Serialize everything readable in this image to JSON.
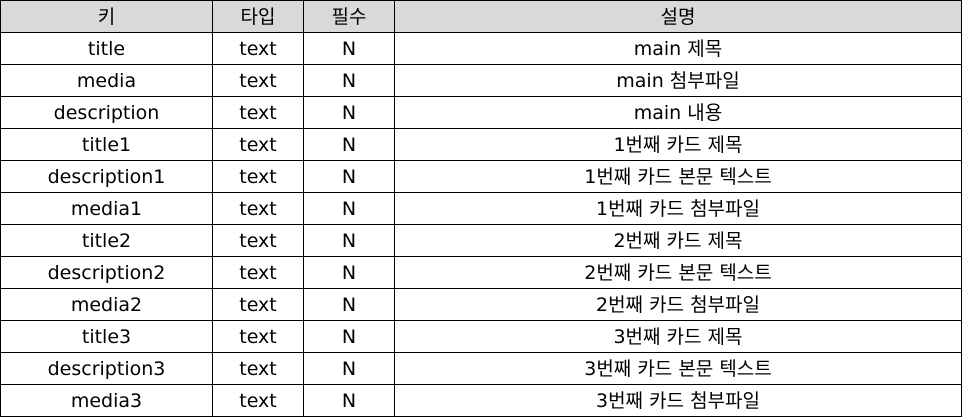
{
  "headers": [
    "키",
    "타입",
    "필수",
    "설명"
  ],
  "rows": [
    [
      "title",
      "text",
      "N",
      "main 제목"
    ],
    [
      "media",
      "text",
      "N",
      "main 첨부파일"
    ],
    [
      "description",
      "text",
      "N",
      "main 내용"
    ],
    [
      "title1",
      "text",
      "N",
      "1번째 카드 제목"
    ],
    [
      "description1",
      "text",
      "N",
      "1번째 카드 본문 텍스트"
    ],
    [
      "media1",
      "text",
      "N",
      "1번째 카드 첨부파일"
    ],
    [
      "title2",
      "text",
      "N",
      "2번째 카드 제목"
    ],
    [
      "description2",
      "text",
      "N",
      "2번째 카드 본문 텍스트"
    ],
    [
      "media2",
      "text",
      "N",
      "2번째 카드 첨부파일"
    ],
    [
      "title3",
      "text",
      "N",
      "3번째 카드 제목"
    ],
    [
      "description3",
      "text",
      "N",
      "3번째 카드 본문 텍스트"
    ],
    [
      "media3",
      "text",
      "N",
      "3번째 카드 첨부파일"
    ]
  ],
  "colors": {
    "header_bg": "#d9d9d9",
    "border": "#000000"
  }
}
